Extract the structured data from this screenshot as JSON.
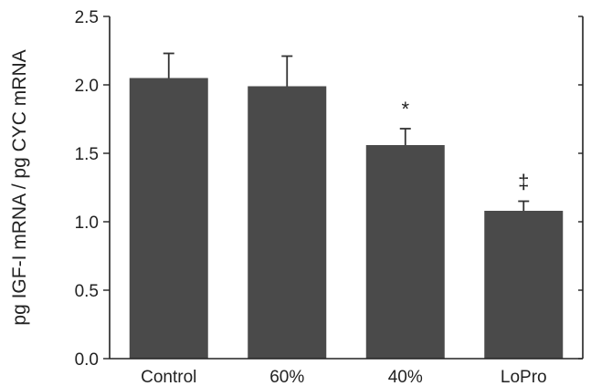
{
  "chart_data": {
    "type": "bar",
    "title": "",
    "xlabel": "",
    "ylabel": "pg IGF-I mRNA / pg CYC mRNA",
    "ylim": [
      0,
      2.5
    ],
    "yticks": [
      0.0,
      0.5,
      1.0,
      1.5,
      2.0,
      2.5
    ],
    "ytick_labels": [
      "0.0",
      "0.5",
      "1.0",
      "1.5",
      "2.0",
      "2.5"
    ],
    "categories": [
      "Control",
      "60%",
      "40%",
      "LoPro"
    ],
    "values": [
      2.05,
      1.99,
      1.56,
      1.08
    ],
    "errors": [
      0.18,
      0.22,
      0.12,
      0.07
    ],
    "annotations": [
      "",
      "",
      "*",
      "‡"
    ],
    "bar_color": "#4a4a4a",
    "grid": false,
    "legend": "none"
  }
}
